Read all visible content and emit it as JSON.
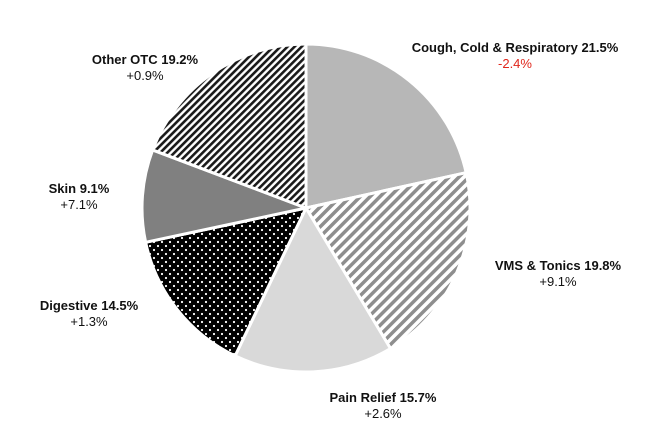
{
  "chart_data": {
    "type": "pie",
    "title": "",
    "start_angle_deg": 0,
    "direction": "clockwise",
    "slices": [
      {
        "name": "Cough, Cold & Respiratory",
        "value": 21.5,
        "value_label": "21.5%",
        "change": "-2.4%",
        "change_sign": "negative",
        "fill": "solid",
        "color": "#b7b7b7"
      },
      {
        "name": "VMS & Tonics",
        "value": 19.8,
        "value_label": "19.8%",
        "change": "+9.1%",
        "change_sign": "positive",
        "fill": "diagonal-stripes-light",
        "color": "#8e8e8e"
      },
      {
        "name": "Pain Relief",
        "value": 15.7,
        "value_label": "15.7%",
        "change": "+2.6%",
        "change_sign": "positive",
        "fill": "solid",
        "color": "#d9d9d9"
      },
      {
        "name": "Digestive",
        "value": 14.5,
        "value_label": "14.5%",
        "change": "+1.3%",
        "change_sign": "positive",
        "fill": "black-with-white-dots",
        "color": "#000000"
      },
      {
        "name": "Skin",
        "value": 9.1,
        "value_label": "9.1%",
        "change": "+7.1%",
        "change_sign": "positive",
        "fill": "solid",
        "color": "#808080"
      },
      {
        "name": "Other OTC",
        "value": 19.2,
        "value_label": "19.2%",
        "change": "+0.9%",
        "change_sign": "positive",
        "fill": "diagonal-stripes-dark",
        "color": "#2a2a2a"
      }
    ]
  }
}
